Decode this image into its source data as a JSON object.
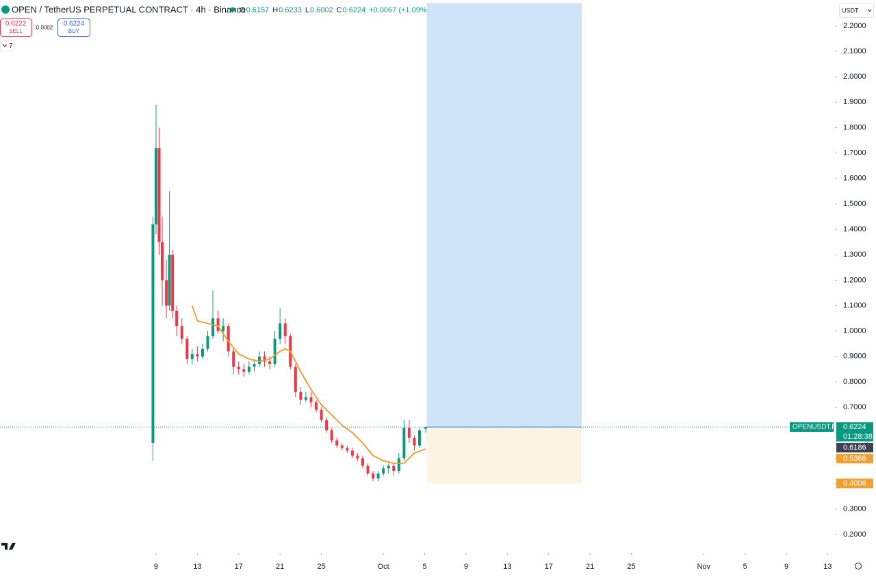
{
  "header": {
    "symbol": "OPEN / TetherUS PERPETUAL CONTRACT · 4h · Binance",
    "ohlc": [
      {
        "label": "O",
        "value": "0.6157"
      },
      {
        "label": "H",
        "value": "0.6233"
      },
      {
        "label": "L",
        "value": "0.6002"
      },
      {
        "label": "C",
        "value": "0.6224"
      }
    ],
    "change": "+0.0067 (+1.09%)"
  },
  "trade_panel": {
    "sell_price": "0.6222",
    "sell_label": "SELL",
    "spread": "0.0002",
    "buy_price": "0.6224",
    "buy_label": "BUY",
    "indicators": "7"
  },
  "currency": "USDT",
  "chart_data": {
    "type": "candlestick",
    "xlim": [
      -6.1,
      74.7
    ],
    "ylim": [
      0.127,
      2.302
    ],
    "xticks": [
      {
        "value": 9,
        "label": "9"
      },
      {
        "value": 13,
        "label": "13"
      },
      {
        "value": 17,
        "label": "17"
      },
      {
        "value": 21,
        "label": "21"
      },
      {
        "value": 25,
        "label": "25"
      },
      {
        "value": 31,
        "label": "Oct"
      },
      {
        "value": 35,
        "label": "5"
      },
      {
        "value": 39,
        "label": "9"
      },
      {
        "value": 43,
        "label": "13"
      },
      {
        "value": 47,
        "label": "17"
      },
      {
        "value": 51,
        "label": "21"
      },
      {
        "value": 55,
        "label": "25"
      },
      {
        "value": 62,
        "label": "Nov"
      },
      {
        "value": 66,
        "label": "5"
      },
      {
        "value": 70,
        "label": "9"
      },
      {
        "value": 74,
        "label": "13"
      }
    ],
    "yticks": [
      {
        "value": 0.2,
        "label": "0.2000"
      },
      {
        "value": 0.3,
        "label": "0.3000"
      },
      {
        "value": 0.4,
        "label": "0.4000"
      },
      {
        "value": 0.5,
        "label": "0.5000"
      },
      {
        "value": 0.6,
        "label": "0.6000"
      },
      {
        "value": 0.7,
        "label": "0.7000"
      },
      {
        "value": 0.8,
        "label": "0.8000"
      },
      {
        "value": 0.9,
        "label": "0.9000"
      },
      {
        "value": 1.0,
        "label": "1.0000"
      },
      {
        "value": 1.1,
        "label": "1.1000"
      },
      {
        "value": 1.2,
        "label": "1.2000"
      },
      {
        "value": 1.3,
        "label": "1.3000"
      },
      {
        "value": 1.4,
        "label": "1.4000"
      },
      {
        "value": 1.5,
        "label": "1.5000"
      },
      {
        "value": 1.6,
        "label": "1.6000"
      },
      {
        "value": 1.7,
        "label": "1.7000"
      },
      {
        "value": 1.8,
        "label": "1.8000"
      },
      {
        "value": 1.9,
        "label": "1.9000"
      },
      {
        "value": 2.0,
        "label": "2.0000"
      },
      {
        "value": 2.1,
        "label": "2.1000"
      },
      {
        "value": 2.2,
        "label": "2.2000"
      }
    ],
    "up_color": "#089981",
    "down_color": "#f23645",
    "candles": {
      "x": [
        8.7,
        9.0,
        9.3,
        9.6,
        10.0,
        10.3,
        10.6,
        11.0,
        11.5,
        12.0,
        12.5,
        13.0,
        13.5,
        14.0,
        14.5,
        15.0,
        15.5,
        16.0,
        16.5,
        17.0,
        17.5,
        18.0,
        18.5,
        19.0,
        19.5,
        20.0,
        20.5,
        21.0,
        21.5,
        22.0,
        22.5,
        23.0,
        23.5,
        24.0,
        24.5,
        25.0,
        25.5,
        26.0,
        26.5,
        27.0,
        27.5,
        28.0,
        28.5,
        29.0,
        29.5,
        30.0,
        30.5,
        31.0,
        31.5,
        32.0,
        32.5,
        33.0,
        33.5,
        34.0,
        34.5,
        35.1
      ],
      "open": [
        0.56,
        1.42,
        1.72,
        1.35,
        1.2,
        1.1,
        1.3,
        1.08,
        1.02,
        0.97,
        0.89,
        0.91,
        0.9,
        0.93,
        0.98,
        1.05,
        1.0,
        1.02,
        0.92,
        0.86,
        0.85,
        0.84,
        0.86,
        0.87,
        0.9,
        0.88,
        0.87,
        0.97,
        1.03,
        0.98,
        0.86,
        0.76,
        0.73,
        0.74,
        0.72,
        0.69,
        0.65,
        0.61,
        0.57,
        0.55,
        0.54,
        0.53,
        0.51,
        0.5,
        0.47,
        0.44,
        0.42,
        0.44,
        0.46,
        0.47,
        0.45,
        0.5,
        0.62,
        0.58,
        0.55,
        0.6157
      ],
      "high": [
        1.45,
        1.89,
        1.8,
        1.45,
        1.28,
        1.55,
        1.32,
        1.1,
        1.05,
        0.98,
        0.93,
        0.94,
        0.95,
        1.0,
        1.16,
        1.08,
        1.05,
        1.03,
        0.93,
        0.88,
        0.87,
        0.88,
        0.89,
        0.92,
        0.92,
        0.9,
        1.0,
        1.09,
        1.05,
        0.99,
        0.87,
        0.78,
        0.76,
        0.76,
        0.73,
        0.7,
        0.66,
        0.62,
        0.58,
        0.56,
        0.55,
        0.54,
        0.52,
        0.51,
        0.48,
        0.45,
        0.45,
        0.47,
        0.48,
        0.48,
        0.52,
        0.65,
        0.65,
        0.59,
        0.62,
        0.6233
      ],
      "low": [
        0.49,
        1.38,
        1.3,
        1.1,
        1.05,
        1.08,
        1.05,
        0.98,
        0.95,
        0.87,
        0.87,
        0.88,
        0.89,
        0.92,
        0.97,
        0.99,
        0.96,
        0.9,
        0.83,
        0.83,
        0.82,
        0.83,
        0.84,
        0.86,
        0.86,
        0.85,
        0.86,
        0.95,
        0.95,
        0.85,
        0.74,
        0.71,
        0.72,
        0.7,
        0.68,
        0.64,
        0.6,
        0.56,
        0.54,
        0.53,
        0.52,
        0.5,
        0.49,
        0.46,
        0.43,
        0.41,
        0.41,
        0.43,
        0.44,
        0.43,
        0.44,
        0.49,
        0.56,
        0.53,
        0.54,
        0.6002
      ],
      "close": [
        1.42,
        1.72,
        1.35,
        1.2,
        1.1,
        1.3,
        1.08,
        1.02,
        0.97,
        0.89,
        0.91,
        0.9,
        0.93,
        0.98,
        1.05,
        1.0,
        1.02,
        0.92,
        0.86,
        0.85,
        0.84,
        0.86,
        0.87,
        0.9,
        0.88,
        0.87,
        0.97,
        1.03,
        0.98,
        0.86,
        0.76,
        0.73,
        0.74,
        0.72,
        0.69,
        0.65,
        0.61,
        0.57,
        0.55,
        0.54,
        0.53,
        0.51,
        0.5,
        0.47,
        0.44,
        0.42,
        0.44,
        0.46,
        0.47,
        0.45,
        0.5,
        0.62,
        0.58,
        0.55,
        0.61,
        0.6224
      ]
    },
    "ma": {
      "color": "#f0a030",
      "x": [
        12.5,
        13,
        14,
        15,
        16,
        17,
        18,
        19,
        20,
        21,
        21.5,
        22,
        23,
        24,
        25,
        26,
        27,
        28,
        29,
        30,
        31,
        32,
        33,
        33.5,
        34,
        35.1
      ],
      "values": [
        1.1,
        1.04,
        1.03,
        1.02,
        0.96,
        0.91,
        0.89,
        0.88,
        0.89,
        0.92,
        0.93,
        0.92,
        0.84,
        0.77,
        0.71,
        0.67,
        0.63,
        0.6,
        0.56,
        0.51,
        0.49,
        0.48,
        0.48,
        0.5,
        0.52,
        0.5368
      ]
    },
    "position": {
      "x": [
        35.2,
        50.2
      ],
      "entry": 0.6224,
      "target": 2.29,
      "stop": 0.4006
    },
    "price_labels": [
      {
        "text": "OPENUSDT.P",
        "value": 0.6224,
        "timer": "01:28:38",
        "color": "#089981"
      },
      {
        "value": 0.6186,
        "color": "#3d4150"
      },
      {
        "value": 0.5368,
        "color": "#f0a030"
      },
      {
        "value": 0.4006,
        "color": "#f0a030"
      }
    ]
  }
}
